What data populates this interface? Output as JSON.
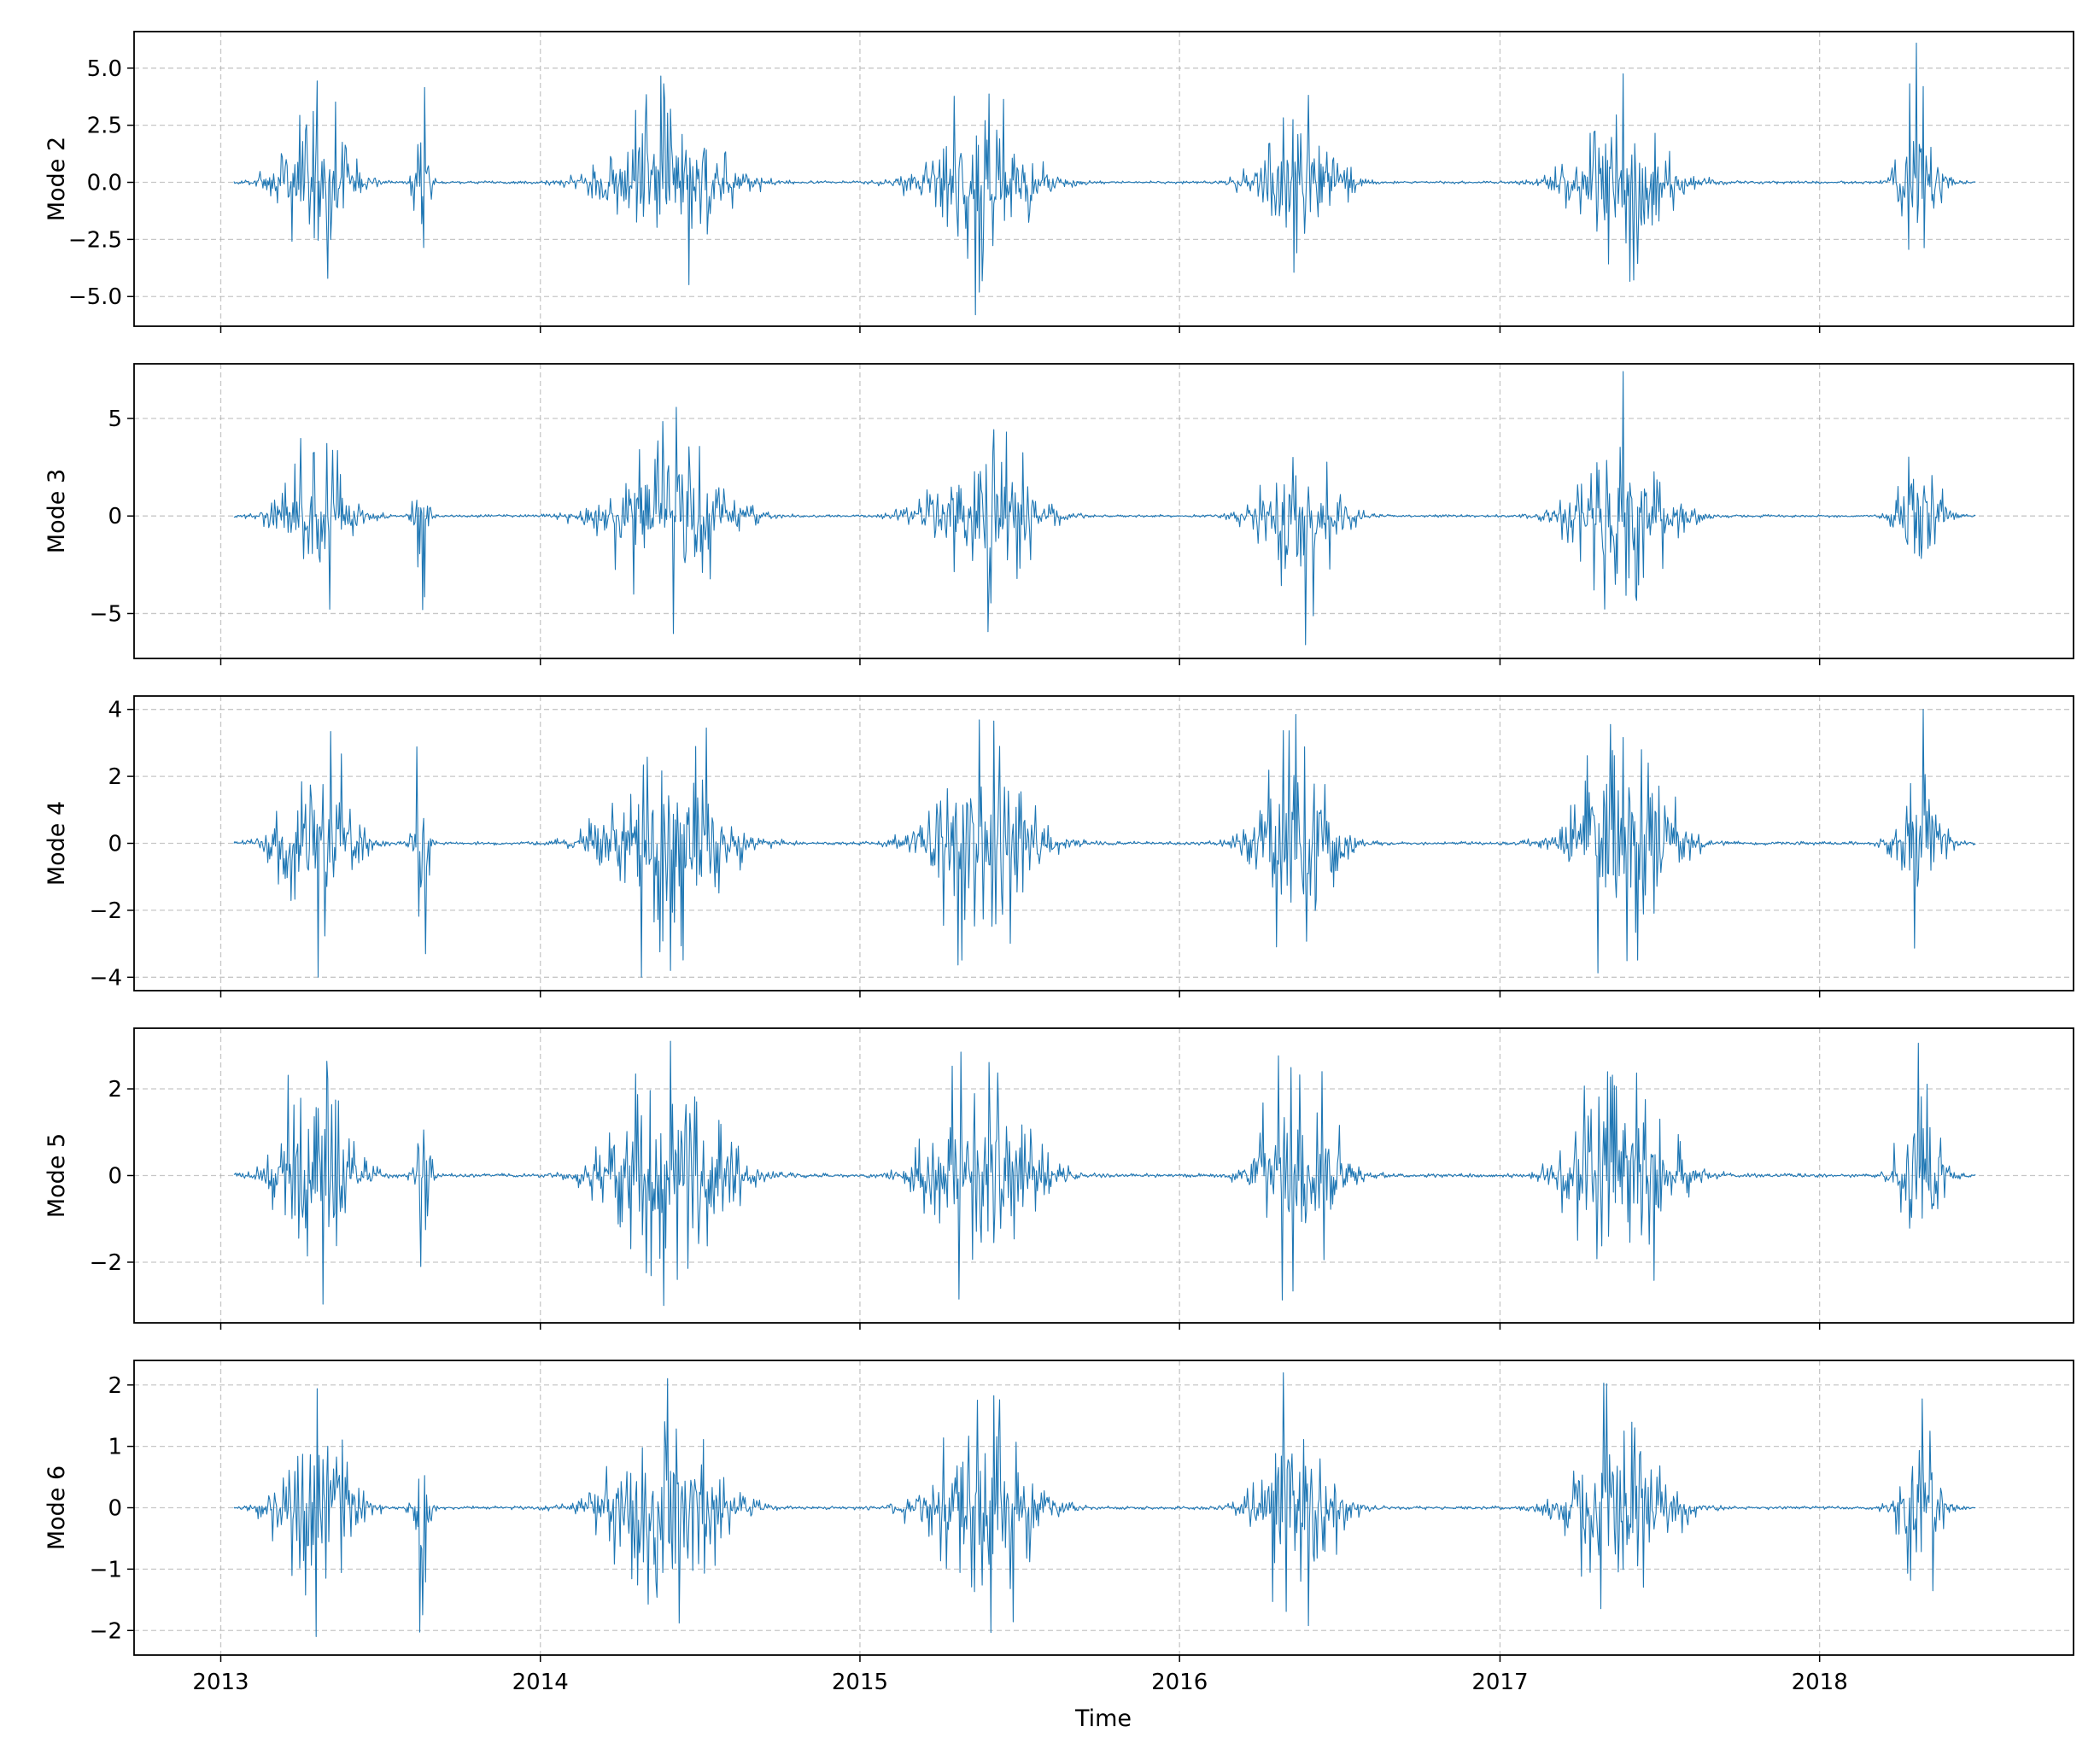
{
  "chart_data": {
    "type": "line",
    "xlabel": "Time",
    "x_ticks": [
      "2013",
      "2014",
      "2015",
      "2016",
      "2017",
      "2018"
    ],
    "x_range": [
      "2012-09-24",
      "2018-10-18"
    ],
    "data_range": [
      "2013-01-16",
      "2018-06-28"
    ],
    "grid": true,
    "line_color": "#1f77b4",
    "bursts": [
      {
        "center": "2013-04-20",
        "width_days": 28
      },
      {
        "center": "2013-08-18",
        "width_days": 6
      },
      {
        "center": "2014-05-25",
        "width_days": 45
      },
      {
        "center": "2015-05-20",
        "width_days": 40
      },
      {
        "center": "2016-05-15",
        "width_days": 30
      },
      {
        "center": "2017-05-20",
        "width_days": 38
      },
      {
        "center": "2018-04-25",
        "width_days": 16
      }
    ],
    "panels": [
      {
        "ylabel": "Mode 2",
        "yticks": [
          -5.0,
          -2.5,
          0.0,
          2.5,
          5.0
        ],
        "tick_format": 1,
        "ylim": [
          -6.3,
          6.6
        ],
        "min": -5.8,
        "max": 6.1
      },
      {
        "ylabel": "Mode 3",
        "yticks": [
          -5,
          0,
          5
        ],
        "tick_format": 0,
        "ylim": [
          -7.3,
          7.8
        ],
        "min": -6.6,
        "max": 7.4
      },
      {
        "ylabel": "Mode 4",
        "yticks": [
          -4,
          -2,
          0,
          2,
          4
        ],
        "tick_format": 0,
        "ylim": [
          -4.4,
          4.4
        ],
        "min": -4.0,
        "max": 4.0
      },
      {
        "ylabel": "Mode 5",
        "yticks": [
          -2,
          0,
          2
        ],
        "tick_format": 0,
        "ylim": [
          -3.4,
          3.4
        ],
        "min": -3.0,
        "max": 3.1
      },
      {
        "ylabel": "Mode 6",
        "yticks": [
          -2,
          -1,
          0,
          1,
          2
        ],
        "tick_format": 0,
        "ylim": [
          -2.4,
          2.4
        ],
        "min": -2.1,
        "max": 2.2
      }
    ]
  }
}
